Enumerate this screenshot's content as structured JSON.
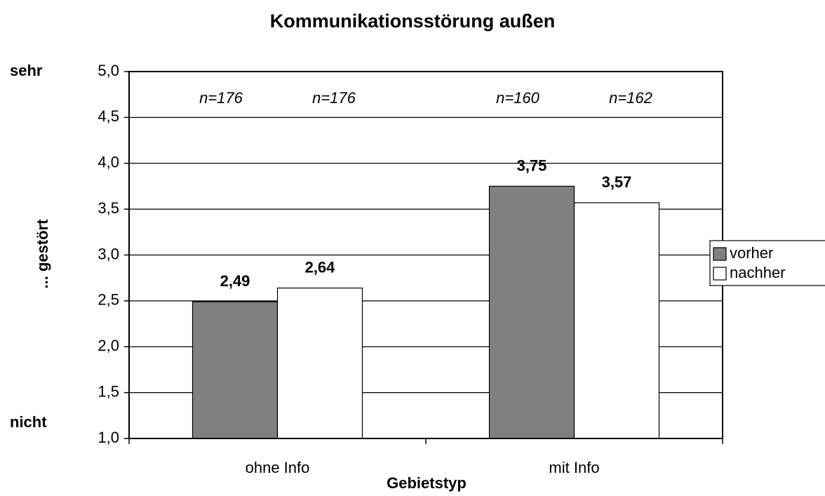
{
  "chart_data": {
    "type": "bar",
    "title": "Kommunikationsstörung außen",
    "x_label": "Gebietstyp",
    "y_label": "... gestört",
    "y_top_label": "sehr",
    "y_bottom_label": "nicht",
    "categories": [
      "ohne Info",
      "mit Info"
    ],
    "series": [
      {
        "name": "vorher",
        "color": "#808080",
        "values": [
          2.49,
          3.75
        ],
        "value_labels": [
          "2,49",
          "3,75"
        ],
        "n_labels": [
          "n=176",
          "n=160"
        ]
      },
      {
        "name": "nachher",
        "color": "#ffffff",
        "values": [
          2.64,
          3.57
        ],
        "value_labels": [
          "2,64",
          "3,57"
        ],
        "n_labels": [
          "n=176",
          "n=162"
        ]
      }
    ],
    "ylim": [
      1,
      5
    ],
    "yticks": [
      {
        "value": 1,
        "label": "1,0"
      },
      {
        "value": 1.5,
        "label": "1,5"
      },
      {
        "value": 2,
        "label": "2,0"
      },
      {
        "value": 2.5,
        "label": "2,5"
      },
      {
        "value": 3,
        "label": "3,0"
      },
      {
        "value": 3.5,
        "label": "3,5"
      },
      {
        "value": 4,
        "label": "4,0"
      },
      {
        "value": 4.5,
        "label": "4,5"
      },
      {
        "value": 5,
        "label": "5,0"
      }
    ],
    "grid": true,
    "legend": "right"
  }
}
